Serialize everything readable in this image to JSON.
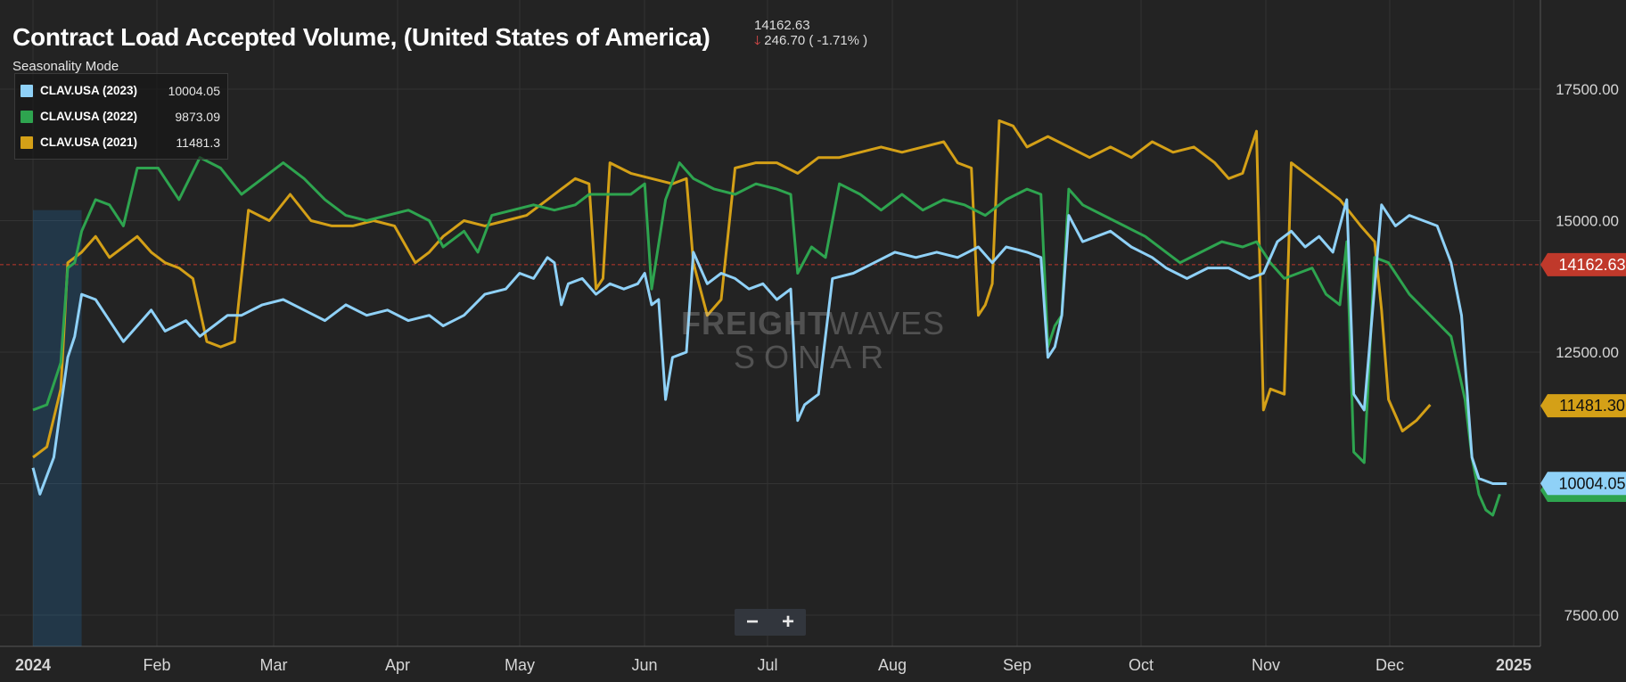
{
  "title": "Contract Load Accepted Volume, (United States of America)",
  "quote": {
    "last": "14162.63",
    "change": "246.70 ( -1.71% )",
    "direction": "down"
  },
  "mode_label": "Seasonality Mode",
  "zoom": {
    "minus": "−",
    "plus": "+"
  },
  "watermark": {
    "line1a": "FREIGHT",
    "line1b": "WAVES",
    "line2": "SONAR"
  },
  "colors": {
    "background": "#232323",
    "grid": "#333333",
    "series_2023": "#8fd1f7",
    "series_2022": "#2ea44f",
    "series_2021": "#d4a017",
    "reference": "#c0392b",
    "highlight": "#2196f3"
  },
  "chart_data": {
    "type": "line",
    "title": "Contract Load Accepted Volume, (United States of America)",
    "x_ticks": [
      "2024",
      "Feb",
      "Mar",
      "Apr",
      "May",
      "Jun",
      "Jul",
      "Aug",
      "Sep",
      "Oct",
      "Nov",
      "Dec",
      "2025"
    ],
    "y_ticks": [
      "17500.00",
      "15000.00",
      "12500.00",
      "7500.00"
    ],
    "y_tick_values": [
      17500,
      15000,
      12500,
      7500
    ],
    "ylim": [
      7000,
      19000
    ],
    "reference_line": {
      "value": 14162.63,
      "label": "14162.63",
      "style": "dashed"
    },
    "series": [
      {
        "name": "CLAV.USA (2023)",
        "last_label": "10004.05",
        "last_value": 10004.05,
        "color_key": "series_2023",
        "points": [
          [
            0,
            10300
          ],
          [
            2,
            9800
          ],
          [
            6,
            10500
          ],
          [
            10,
            12400
          ],
          [
            12,
            12800
          ],
          [
            14,
            13600
          ],
          [
            18,
            13500
          ],
          [
            22,
            13100
          ],
          [
            26,
            12700
          ],
          [
            30,
            13000
          ],
          [
            34,
            13300
          ],
          [
            38,
            12900
          ],
          [
            44,
            13100
          ],
          [
            48,
            12800
          ],
          [
            52,
            13000
          ],
          [
            56,
            13200
          ],
          [
            60,
            13200
          ],
          [
            66,
            13400
          ],
          [
            72,
            13500
          ],
          [
            78,
            13300
          ],
          [
            84,
            13100
          ],
          [
            90,
            13400
          ],
          [
            96,
            13200
          ],
          [
            102,
            13300
          ],
          [
            108,
            13100
          ],
          [
            114,
            13200
          ],
          [
            118,
            13000
          ],
          [
            124,
            13200
          ],
          [
            130,
            13600
          ],
          [
            136,
            13700
          ],
          [
            140,
            14000
          ],
          [
            144,
            13900
          ],
          [
            148,
            14300
          ],
          [
            150,
            14200
          ],
          [
            152,
            13400
          ],
          [
            154,
            13800
          ],
          [
            158,
            13900
          ],
          [
            162,
            13600
          ],
          [
            166,
            13800
          ],
          [
            170,
            13700
          ],
          [
            174,
            13800
          ],
          [
            176,
            14000
          ],
          [
            178,
            13400
          ],
          [
            180,
            13500
          ],
          [
            182,
            11600
          ],
          [
            184,
            12400
          ],
          [
            188,
            12500
          ],
          [
            190,
            14400
          ],
          [
            194,
            13800
          ],
          [
            198,
            14000
          ],
          [
            202,
            13900
          ],
          [
            206,
            13700
          ],
          [
            210,
            13800
          ],
          [
            214,
            13500
          ],
          [
            218,
            13700
          ],
          [
            220,
            11200
          ],
          [
            222,
            11500
          ],
          [
            226,
            11700
          ],
          [
            230,
            13900
          ],
          [
            236,
            14000
          ],
          [
            242,
            14200
          ],
          [
            248,
            14400
          ],
          [
            254,
            14300
          ],
          [
            260,
            14400
          ],
          [
            266,
            14300
          ],
          [
            272,
            14500
          ],
          [
            276,
            14200
          ],
          [
            280,
            14500
          ],
          [
            286,
            14400
          ],
          [
            290,
            14300
          ],
          [
            292,
            12400
          ],
          [
            294,
            12600
          ],
          [
            296,
            13200
          ],
          [
            298,
            15100
          ],
          [
            302,
            14600
          ],
          [
            306,
            14700
          ],
          [
            310,
            14800
          ],
          [
            316,
            14500
          ],
          [
            322,
            14300
          ],
          [
            326,
            14100
          ],
          [
            332,
            13900
          ],
          [
            338,
            14100
          ],
          [
            344,
            14100
          ],
          [
            350,
            13900
          ],
          [
            354,
            14000
          ],
          [
            358,
            14600
          ],
          [
            362,
            14800
          ],
          [
            366,
            14500
          ],
          [
            370,
            14700
          ],
          [
            374,
            14400
          ],
          [
            378,
            15400
          ],
          [
            380,
            11700
          ],
          [
            383,
            11400
          ],
          [
            388,
            15300
          ],
          [
            392,
            14900
          ],
          [
            396,
            15100
          ],
          [
            400,
            15000
          ],
          [
            404,
            14900
          ],
          [
            408,
            14200
          ],
          [
            411,
            13200
          ],
          [
            414,
            10500
          ],
          [
            416,
            10100
          ],
          [
            420,
            10000
          ],
          [
            424,
            10000
          ]
        ]
      },
      {
        "name": "CLAV.USA (2022)",
        "last_label": "9873.09",
        "last_value": 9873.09,
        "color_key": "series_2022",
        "points": [
          [
            0,
            11400
          ],
          [
            4,
            11500
          ],
          [
            8,
            12300
          ],
          [
            10,
            14100
          ],
          [
            12,
            14200
          ],
          [
            14,
            14800
          ],
          [
            18,
            15400
          ],
          [
            22,
            15300
          ],
          [
            26,
            14900
          ],
          [
            30,
            16000
          ],
          [
            36,
            16000
          ],
          [
            42,
            15400
          ],
          [
            48,
            16200
          ],
          [
            54,
            16000
          ],
          [
            60,
            15500
          ],
          [
            66,
            15800
          ],
          [
            72,
            16100
          ],
          [
            78,
            15800
          ],
          [
            84,
            15400
          ],
          [
            90,
            15100
          ],
          [
            96,
            15000
          ],
          [
            102,
            15100
          ],
          [
            108,
            15200
          ],
          [
            114,
            15000
          ],
          [
            118,
            14500
          ],
          [
            124,
            14800
          ],
          [
            128,
            14400
          ],
          [
            132,
            15100
          ],
          [
            138,
            15200
          ],
          [
            144,
            15300
          ],
          [
            150,
            15200
          ],
          [
            156,
            15300
          ],
          [
            160,
            15500
          ],
          [
            166,
            15500
          ],
          [
            172,
            15500
          ],
          [
            176,
            15700
          ],
          [
            178,
            13700
          ],
          [
            182,
            15400
          ],
          [
            186,
            16100
          ],
          [
            190,
            15800
          ],
          [
            196,
            15600
          ],
          [
            202,
            15500
          ],
          [
            208,
            15700
          ],
          [
            214,
            15600
          ],
          [
            218,
            15500
          ],
          [
            220,
            14000
          ],
          [
            224,
            14500
          ],
          [
            228,
            14300
          ],
          [
            232,
            15700
          ],
          [
            238,
            15500
          ],
          [
            244,
            15200
          ],
          [
            250,
            15500
          ],
          [
            256,
            15200
          ],
          [
            262,
            15400
          ],
          [
            268,
            15300
          ],
          [
            274,
            15100
          ],
          [
            280,
            15400
          ],
          [
            286,
            15600
          ],
          [
            290,
            15500
          ],
          [
            292,
            12600
          ],
          [
            294,
            13000
          ],
          [
            296,
            13200
          ],
          [
            298,
            15600
          ],
          [
            302,
            15300
          ],
          [
            308,
            15100
          ],
          [
            314,
            14900
          ],
          [
            320,
            14700
          ],
          [
            326,
            14400
          ],
          [
            330,
            14200
          ],
          [
            336,
            14400
          ],
          [
            342,
            14600
          ],
          [
            348,
            14500
          ],
          [
            352,
            14600
          ],
          [
            356,
            14200
          ],
          [
            360,
            13900
          ],
          [
            364,
            14000
          ],
          [
            368,
            14100
          ],
          [
            372,
            13600
          ],
          [
            376,
            13400
          ],
          [
            378,
            14600
          ],
          [
            380,
            10600
          ],
          [
            383,
            10400
          ],
          [
            386,
            14300
          ],
          [
            390,
            14200
          ],
          [
            396,
            13600
          ],
          [
            402,
            13200
          ],
          [
            408,
            12800
          ],
          [
            412,
            11600
          ],
          [
            414,
            10500
          ],
          [
            416,
            9800
          ],
          [
            418,
            9500
          ],
          [
            420,
            9400
          ],
          [
            422,
            9800
          ]
        ]
      },
      {
        "name": "CLAV.USA (2021)",
        "last_label": "11481.3",
        "last_value": 11481.3,
        "color_key": "series_2021",
        "points": [
          [
            0,
            10500
          ],
          [
            4,
            10700
          ],
          [
            8,
            11800
          ],
          [
            10,
            14200
          ],
          [
            14,
            14400
          ],
          [
            18,
            14700
          ],
          [
            22,
            14300
          ],
          [
            26,
            14500
          ],
          [
            30,
            14700
          ],
          [
            34,
            14400
          ],
          [
            38,
            14200
          ],
          [
            42,
            14100
          ],
          [
            46,
            13900
          ],
          [
            50,
            12700
          ],
          [
            54,
            12600
          ],
          [
            58,
            12700
          ],
          [
            62,
            15200
          ],
          [
            68,
            15000
          ],
          [
            74,
            15500
          ],
          [
            80,
            15000
          ],
          [
            86,
            14900
          ],
          [
            92,
            14900
          ],
          [
            98,
            15000
          ],
          [
            104,
            14900
          ],
          [
            110,
            14200
          ],
          [
            114,
            14400
          ],
          [
            118,
            14700
          ],
          [
            124,
            15000
          ],
          [
            130,
            14900
          ],
          [
            136,
            15000
          ],
          [
            142,
            15100
          ],
          [
            148,
            15400
          ],
          [
            152,
            15600
          ],
          [
            156,
            15800
          ],
          [
            160,
            15700
          ],
          [
            162,
            13700
          ],
          [
            164,
            13900
          ],
          [
            166,
            16100
          ],
          [
            172,
            15900
          ],
          [
            178,
            15800
          ],
          [
            184,
            15700
          ],
          [
            188,
            15800
          ],
          [
            190,
            14200
          ],
          [
            194,
            13200
          ],
          [
            198,
            13500
          ],
          [
            202,
            16000
          ],
          [
            208,
            16100
          ],
          [
            214,
            16100
          ],
          [
            220,
            15900
          ],
          [
            226,
            16200
          ],
          [
            232,
            16200
          ],
          [
            238,
            16300
          ],
          [
            244,
            16400
          ],
          [
            250,
            16300
          ],
          [
            256,
            16400
          ],
          [
            262,
            16500
          ],
          [
            266,
            16100
          ],
          [
            270,
            16000
          ],
          [
            272,
            13200
          ],
          [
            274,
            13400
          ],
          [
            276,
            13800
          ],
          [
            278,
            16900
          ],
          [
            282,
            16800
          ],
          [
            286,
            16400
          ],
          [
            292,
            16600
          ],
          [
            298,
            16400
          ],
          [
            304,
            16200
          ],
          [
            310,
            16400
          ],
          [
            316,
            16200
          ],
          [
            322,
            16500
          ],
          [
            328,
            16300
          ],
          [
            334,
            16400
          ],
          [
            340,
            16100
          ],
          [
            344,
            15800
          ],
          [
            348,
            15900
          ],
          [
            352,
            16700
          ],
          [
            354,
            11400
          ],
          [
            356,
            11800
          ],
          [
            360,
            11700
          ],
          [
            362,
            16100
          ],
          [
            366,
            15900
          ],
          [
            370,
            15700
          ],
          [
            376,
            15400
          ],
          [
            382,
            14900
          ],
          [
            386,
            14600
          ],
          [
            388,
            13300
          ],
          [
            390,
            11600
          ],
          [
            394,
            11000
          ],
          [
            398,
            11200
          ],
          [
            402,
            11500
          ]
        ]
      }
    ]
  }
}
